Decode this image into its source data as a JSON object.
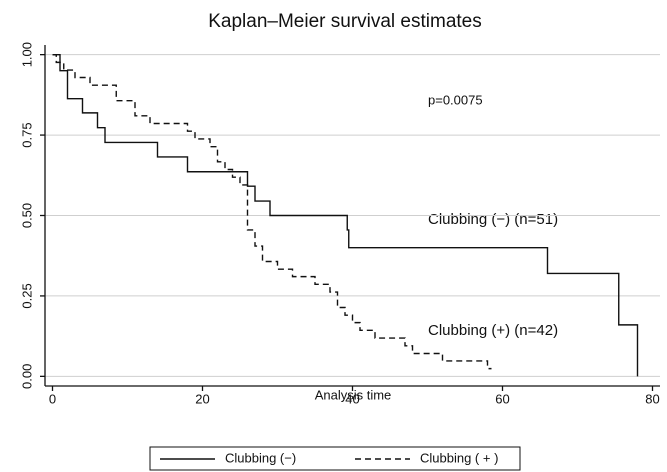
{
  "chart_data": {
    "type": "step",
    "title": "Kaplan–Meier survival estimates",
    "x_label": "Analysis time",
    "annotations": [
      "p=0.0075",
      "Clubbing (−)  (n=51)",
      "Clubbing (+) (n=42)"
    ],
    "xlim": [
      -1,
      81
    ],
    "ylim": [
      -0.03,
      1.03
    ],
    "xticks": [
      0,
      20,
      40,
      60,
      80
    ],
    "yticks": [
      {
        "value": 0,
        "label": "0.00"
      },
      {
        "value": 0.25,
        "label": "0.25"
      },
      {
        "value": 0.5,
        "label": "0.50"
      },
      {
        "value": 0.75,
        "label": "0.75"
      },
      {
        "value": 1,
        "label": "1.00"
      }
    ],
    "grid": true,
    "legend": "bottom",
    "series": [
      {
        "name": "Clubbing (−)",
        "color": "#111111",
        "dash": "solid",
        "x": [
          0,
          1,
          2,
          4,
          6,
          7,
          14,
          18,
          26,
          27,
          29,
          39.3,
          39.5,
          66,
          75.5,
          78
        ],
        "values": [
          1,
          0.95,
          0.863,
          0.819,
          0.773,
          0.727,
          0.682,
          0.636,
          0.591,
          0.545,
          0.5,
          0.455,
          0.4,
          0.32,
          0.16,
          0
        ]
      },
      {
        "name": "Clubbing ( + )",
        "color": "#111111",
        "dash": "dashed",
        "x": [
          0,
          0.5,
          1.5,
          3,
          5,
          8.5,
          11,
          13,
          18,
          19,
          21,
          22,
          23,
          24,
          25,
          26,
          27,
          28,
          30,
          32,
          35,
          37,
          38,
          39,
          40,
          41,
          43,
          47,
          48,
          52,
          58
        ],
        "values": [
          1,
          0.976,
          0.952,
          0.929,
          0.905,
          0.857,
          0.81,
          0.786,
          0.762,
          0.738,
          0.714,
          0.667,
          0.643,
          0.619,
          0.595,
          0.455,
          0.405,
          0.357,
          0.333,
          0.31,
          0.286,
          0.262,
          0.214,
          0.19,
          0.167,
          0.143,
          0.119,
          0.095,
          0.071,
          0.048,
          0.024
        ]
      }
    ]
  }
}
